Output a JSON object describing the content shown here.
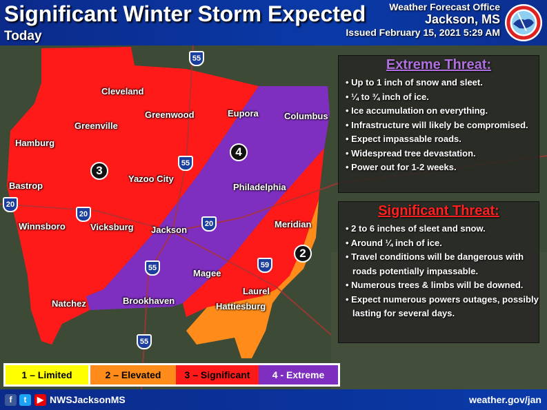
{
  "header": {
    "title": "Significant Winter Storm Expected",
    "subtitle": "Today",
    "office_line": "Weather Forecast Office",
    "office_location": "Jackson, MS",
    "issued": "Issued February 15, 2021 5:29 AM",
    "logo": "NOAA National Weather Service logo"
  },
  "map": {
    "cities": [
      "Cleveland",
      "Greenwood",
      "Greenville",
      "Hamburg",
      "Yazoo City",
      "Bastrop",
      "Eupora",
      "Columbus",
      "Philadelphia",
      "Vicksburg",
      "Jackson",
      "Meridian",
      "Winnsboro",
      "Magee",
      "Laurel",
      "Natchez",
      "Brookhaven",
      "Hattiesburg"
    ],
    "interstates": [
      "55",
      "55",
      "20",
      "20",
      "20",
      "55",
      "59",
      "55"
    ],
    "zone_markers": [
      "3",
      "4",
      "2"
    ],
    "colors": {
      "limited": "#ffff00",
      "elevated": "#ff8c1a",
      "significant": "#ff1a1a",
      "extreme": "#7f2fbf"
    }
  },
  "extreme": {
    "title": "Extreme Threat:",
    "items": [
      "Up to 1 inch of snow and sleet.",
      "¼  to ¾  inch of ice.",
      "Ice accumulation  on everything.",
      "Infrastructure  will likely be compromised.",
      "Expect impassable  roads.",
      "Widespread  tree devastation.",
      "Power out for 1-2 weeks."
    ]
  },
  "significant": {
    "title": "Significant Threat:",
    "items": [
      "2 to 6 inches of sleet and snow.",
      "Around ¼ inch of ice.",
      "Travel conditions  will be dangerous with roads potentially  impassable.",
      "Numerous trees & limbs will be downed.",
      "Expect numerous  powers outages, possibly  lasting for several days."
    ]
  },
  "legend": [
    {
      "label": "1 – Limited",
      "color": "#ffff00",
      "text": "#000"
    },
    {
      "label": "2 – Elevated",
      "color": "#ff8c1a",
      "text": "#000"
    },
    {
      "label": "3 – Significant",
      "color": "#ff1a1a",
      "text": "#000"
    },
    {
      "label": "4 - Extreme",
      "color": "#7f2fbf",
      "text": "#fff"
    }
  ],
  "footer": {
    "social_icons": [
      "facebook-icon",
      "twitter-icon",
      "youtube-icon"
    ],
    "handle": "NWSJacksonMS",
    "url": "weather.gov/jan"
  }
}
